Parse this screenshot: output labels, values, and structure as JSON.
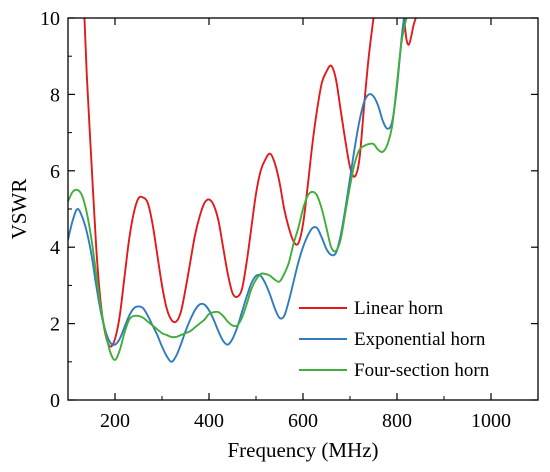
{
  "chart_data": {
    "type": "line",
    "xlabel": "Frequency (MHz)",
    "ylabel": "VSWR",
    "xlim": [
      100,
      1100
    ],
    "ylim": [
      0,
      10
    ],
    "xticks": [
      200,
      400,
      600,
      800,
      1000
    ],
    "yticks": [
      0,
      2,
      4,
      6,
      8,
      10
    ],
    "grid": false,
    "legend_position": "bottom-right",
    "series": [
      {
        "name": "Linear horn",
        "color": "#e01b1b",
        "points": [
          [
            135,
            10
          ],
          [
            140,
            8.5
          ],
          [
            150,
            6.2
          ],
          [
            160,
            4.0
          ],
          [
            170,
            2.5
          ],
          [
            180,
            1.7
          ],
          [
            190,
            1.4
          ],
          [
            200,
            1.6
          ],
          [
            210,
            2.2
          ],
          [
            220,
            3.2
          ],
          [
            230,
            4.2
          ],
          [
            240,
            4.9
          ],
          [
            250,
            5.28
          ],
          [
            260,
            5.3
          ],
          [
            270,
            5.15
          ],
          [
            280,
            4.6
          ],
          [
            290,
            3.8
          ],
          [
            300,
            3.0
          ],
          [
            310,
            2.4
          ],
          [
            320,
            2.1
          ],
          [
            330,
            2.05
          ],
          [
            340,
            2.3
          ],
          [
            350,
            2.9
          ],
          [
            360,
            3.6
          ],
          [
            370,
            4.3
          ],
          [
            380,
            4.8
          ],
          [
            390,
            5.15
          ],
          [
            400,
            5.25
          ],
          [
            410,
            5.1
          ],
          [
            420,
            4.7
          ],
          [
            430,
            4.0
          ],
          [
            440,
            3.3
          ],
          [
            450,
            2.8
          ],
          [
            460,
            2.7
          ],
          [
            470,
            2.9
          ],
          [
            480,
            3.6
          ],
          [
            490,
            4.5
          ],
          [
            500,
            5.4
          ],
          [
            510,
            6.0
          ],
          [
            520,
            6.3
          ],
          [
            530,
            6.45
          ],
          [
            540,
            6.2
          ],
          [
            550,
            5.7
          ],
          [
            560,
            5.0
          ],
          [
            570,
            4.5
          ],
          [
            580,
            4.15
          ],
          [
            590,
            4.1
          ],
          [
            600,
            4.6
          ],
          [
            610,
            5.6
          ],
          [
            620,
            6.7
          ],
          [
            630,
            7.6
          ],
          [
            640,
            8.3
          ],
          [
            650,
            8.6
          ],
          [
            660,
            8.75
          ],
          [
            670,
            8.4
          ],
          [
            680,
            7.6
          ],
          [
            690,
            6.8
          ],
          [
            700,
            6.1
          ],
          [
            710,
            5.85
          ],
          [
            720,
            6.3
          ],
          [
            730,
            7.7
          ],
          [
            740,
            9.0
          ],
          [
            750,
            10
          ]
        ]
      },
      {
        "name": "",
        "color": "#e01b1b",
        "points": [
          [
            815,
            10
          ],
          [
            820,
            9.45
          ],
          [
            825,
            9.3
          ],
          [
            830,
            9.5
          ],
          [
            835,
            9.8
          ],
          [
            840,
            10
          ]
        ]
      },
      {
        "name": "Exponential horn",
        "color": "#2f7bbf",
        "points": [
          [
            100,
            4.2
          ],
          [
            110,
            4.7
          ],
          [
            120,
            5.0
          ],
          [
            130,
            4.8
          ],
          [
            140,
            4.4
          ],
          [
            150,
            3.8
          ],
          [
            160,
            3.0
          ],
          [
            170,
            2.3
          ],
          [
            180,
            1.8
          ],
          [
            190,
            1.5
          ],
          [
            200,
            1.45
          ],
          [
            210,
            1.6
          ],
          [
            220,
            1.9
          ],
          [
            230,
            2.2
          ],
          [
            240,
            2.4
          ],
          [
            250,
            2.45
          ],
          [
            260,
            2.4
          ],
          [
            270,
            2.2
          ],
          [
            280,
            1.95
          ],
          [
            290,
            1.7
          ],
          [
            300,
            1.4
          ],
          [
            310,
            1.15
          ],
          [
            320,
            1.0
          ],
          [
            330,
            1.15
          ],
          [
            340,
            1.45
          ],
          [
            350,
            1.8
          ],
          [
            360,
            2.1
          ],
          [
            370,
            2.35
          ],
          [
            380,
            2.5
          ],
          [
            390,
            2.5
          ],
          [
            400,
            2.35
          ],
          [
            410,
            2.1
          ],
          [
            420,
            1.8
          ],
          [
            430,
            1.55
          ],
          [
            440,
            1.45
          ],
          [
            450,
            1.6
          ],
          [
            460,
            1.9
          ],
          [
            470,
            2.3
          ],
          [
            480,
            2.7
          ],
          [
            490,
            3.05
          ],
          [
            500,
            3.25
          ],
          [
            510,
            3.25
          ],
          [
            520,
            3.05
          ],
          [
            530,
            2.75
          ],
          [
            540,
            2.4
          ],
          [
            550,
            2.15
          ],
          [
            560,
            2.2
          ],
          [
            570,
            2.6
          ],
          [
            580,
            3.1
          ],
          [
            590,
            3.6
          ],
          [
            600,
            4.0
          ],
          [
            610,
            4.3
          ],
          [
            620,
            4.5
          ],
          [
            630,
            4.5
          ],
          [
            640,
            4.25
          ],
          [
            650,
            3.95
          ],
          [
            660,
            3.8
          ],
          [
            670,
            3.85
          ],
          [
            680,
            4.3
          ],
          [
            690,
            5.0
          ],
          [
            700,
            5.8
          ],
          [
            710,
            6.6
          ],
          [
            720,
            7.3
          ],
          [
            730,
            7.8
          ],
          [
            740,
            8.0
          ],
          [
            750,
            7.95
          ],
          [
            760,
            7.7
          ],
          [
            770,
            7.3
          ],
          [
            780,
            7.1
          ],
          [
            790,
            7.3
          ],
          [
            800,
            8.2
          ],
          [
            810,
            9.5
          ],
          [
            815,
            10
          ]
        ]
      },
      {
        "name": "Four-section horn",
        "color": "#41ad3a",
        "points": [
          [
            100,
            5.2
          ],
          [
            110,
            5.45
          ],
          [
            120,
            5.5
          ],
          [
            130,
            5.35
          ],
          [
            140,
            4.9
          ],
          [
            150,
            4.2
          ],
          [
            160,
            3.3
          ],
          [
            170,
            2.4
          ],
          [
            180,
            1.75
          ],
          [
            190,
            1.25
          ],
          [
            200,
            1.05
          ],
          [
            210,
            1.3
          ],
          [
            220,
            1.75
          ],
          [
            230,
            2.1
          ],
          [
            240,
            2.2
          ],
          [
            250,
            2.2
          ],
          [
            260,
            2.15
          ],
          [
            270,
            2.05
          ],
          [
            280,
            1.95
          ],
          [
            290,
            1.85
          ],
          [
            300,
            1.75
          ],
          [
            310,
            1.7
          ],
          [
            320,
            1.65
          ],
          [
            330,
            1.65
          ],
          [
            340,
            1.7
          ],
          [
            350,
            1.75
          ],
          [
            360,
            1.8
          ],
          [
            370,
            1.9
          ],
          [
            380,
            2.0
          ],
          [
            390,
            2.1
          ],
          [
            400,
            2.25
          ],
          [
            410,
            2.3
          ],
          [
            420,
            2.3
          ],
          [
            430,
            2.2
          ],
          [
            440,
            2.05
          ],
          [
            450,
            1.95
          ],
          [
            460,
            1.95
          ],
          [
            470,
            2.15
          ],
          [
            480,
            2.5
          ],
          [
            490,
            2.9
          ],
          [
            500,
            3.15
          ],
          [
            510,
            3.3
          ],
          [
            520,
            3.3
          ],
          [
            530,
            3.25
          ],
          [
            540,
            3.15
          ],
          [
            550,
            3.1
          ],
          [
            560,
            3.3
          ],
          [
            570,
            3.6
          ],
          [
            580,
            4.1
          ],
          [
            590,
            4.5
          ],
          [
            600,
            5.0
          ],
          [
            610,
            5.35
          ],
          [
            620,
            5.45
          ],
          [
            630,
            5.35
          ],
          [
            640,
            5.0
          ],
          [
            650,
            4.5
          ],
          [
            660,
            4.0
          ],
          [
            670,
            3.9
          ],
          [
            680,
            4.2
          ],
          [
            690,
            4.9
          ],
          [
            700,
            5.6
          ],
          [
            710,
            6.2
          ],
          [
            720,
            6.55
          ],
          [
            730,
            6.65
          ],
          [
            740,
            6.7
          ],
          [
            750,
            6.7
          ],
          [
            760,
            6.55
          ],
          [
            770,
            6.5
          ],
          [
            780,
            6.7
          ],
          [
            790,
            7.2
          ],
          [
            800,
            8.3
          ],
          [
            810,
            9.4
          ],
          [
            820,
            10
          ]
        ]
      }
    ]
  }
}
